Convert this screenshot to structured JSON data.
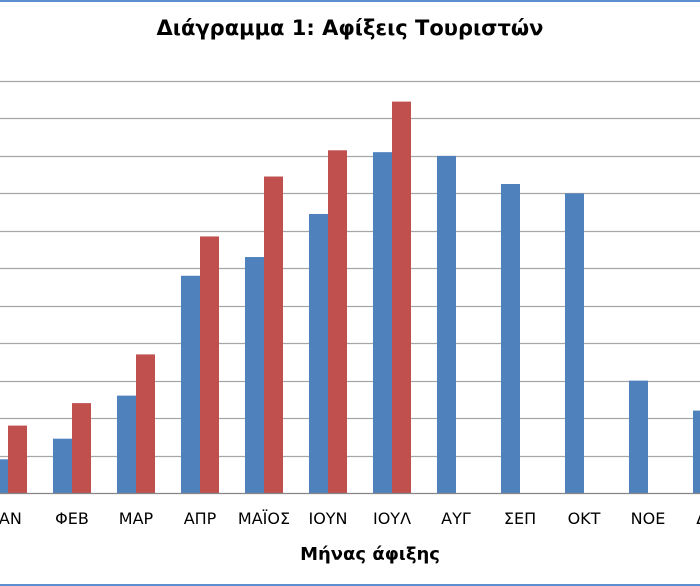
{
  "chart_data": {
    "type": "bar",
    "title": "Διάγραμμα 1: Αφίξεις Τουριστών",
    "xlabel": "Μήνας άφιξης",
    "ylabel": "",
    "categories": [
      "ΙΑΝ",
      "ΦΕΒ",
      "ΜΑΡ",
      "ΑΠΡ",
      "ΜΑΪΟΣ",
      "ΙΟΥΝ",
      "ΙΟΥΛ",
      "ΑΥΓ",
      "ΣΕΠ",
      "ΟΚΤ",
      "ΝΟΕ",
      "ΔΕΚ"
    ],
    "series": [
      {
        "color": "#4f81bd",
        "values": [
          0.9,
          1.45,
          2.6,
          5.8,
          6.3,
          7.45,
          9.1,
          9.0,
          8.25,
          8.0,
          3.0,
          2.2
        ]
      },
      {
        "color": "#c0504d",
        "values": [
          1.8,
          2.4,
          3.7,
          6.85,
          8.45,
          9.15,
          10.45,
          null,
          null,
          null,
          null,
          null
        ]
      }
    ],
    "ylim": [
      0,
      11
    ],
    "y_gridline_step": 1,
    "grid": true,
    "legend": "none"
  }
}
